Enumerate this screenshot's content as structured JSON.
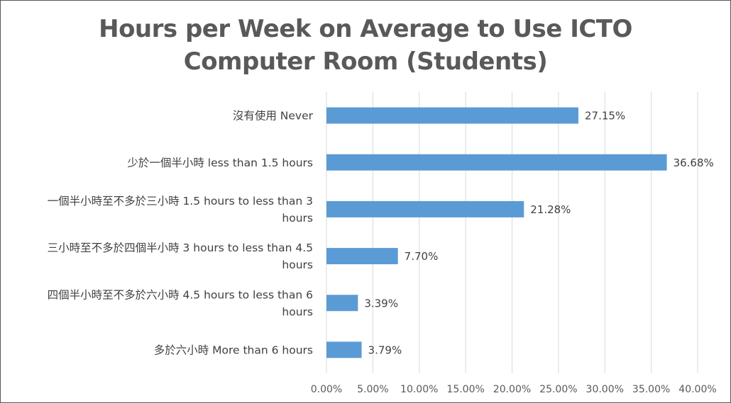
{
  "chart_data": {
    "type": "bar",
    "orientation": "horizontal",
    "title": "Hours per Week on Average to Use ICTO Computer Room (Students)",
    "title_lines": [
      "Hours per Week on Average to Use ICTO",
      "Computer Room (Students)"
    ],
    "categories": [
      [
        "沒有使用 Never"
      ],
      [
        "少於一個半小時 less than 1.5 hours"
      ],
      [
        "一個半小時至不多於三小時 1.5 hours to less than 3",
        "hours"
      ],
      [
        "三小時至不多於四個半小時 3 hours to less than 4.5",
        "hours"
      ],
      [
        "四個半小時至不多於六小時 4.5 hours to less than 6",
        "hours"
      ],
      [
        "多於六小時 More than 6 hours"
      ]
    ],
    "values": [
      27.15,
      36.68,
      21.28,
      7.7,
      3.39,
      3.79
    ],
    "data_labels": [
      "27.15%",
      "36.68%",
      "21.28%",
      "7.70%",
      "3.39%",
      "3.79%"
    ],
    "xlim": [
      0,
      40
    ],
    "x_ticks": [
      0,
      5,
      10,
      15,
      20,
      25,
      30,
      35,
      40
    ],
    "x_tick_labels": [
      "0.00%",
      "5.00%",
      "10.00%",
      "15.00%",
      "20.00%",
      "25.00%",
      "30.00%",
      "35.00%",
      "40.00%"
    ],
    "grid": true,
    "bar_color": "#5b9bd5",
    "grid_color": "#d9d9d9"
  }
}
